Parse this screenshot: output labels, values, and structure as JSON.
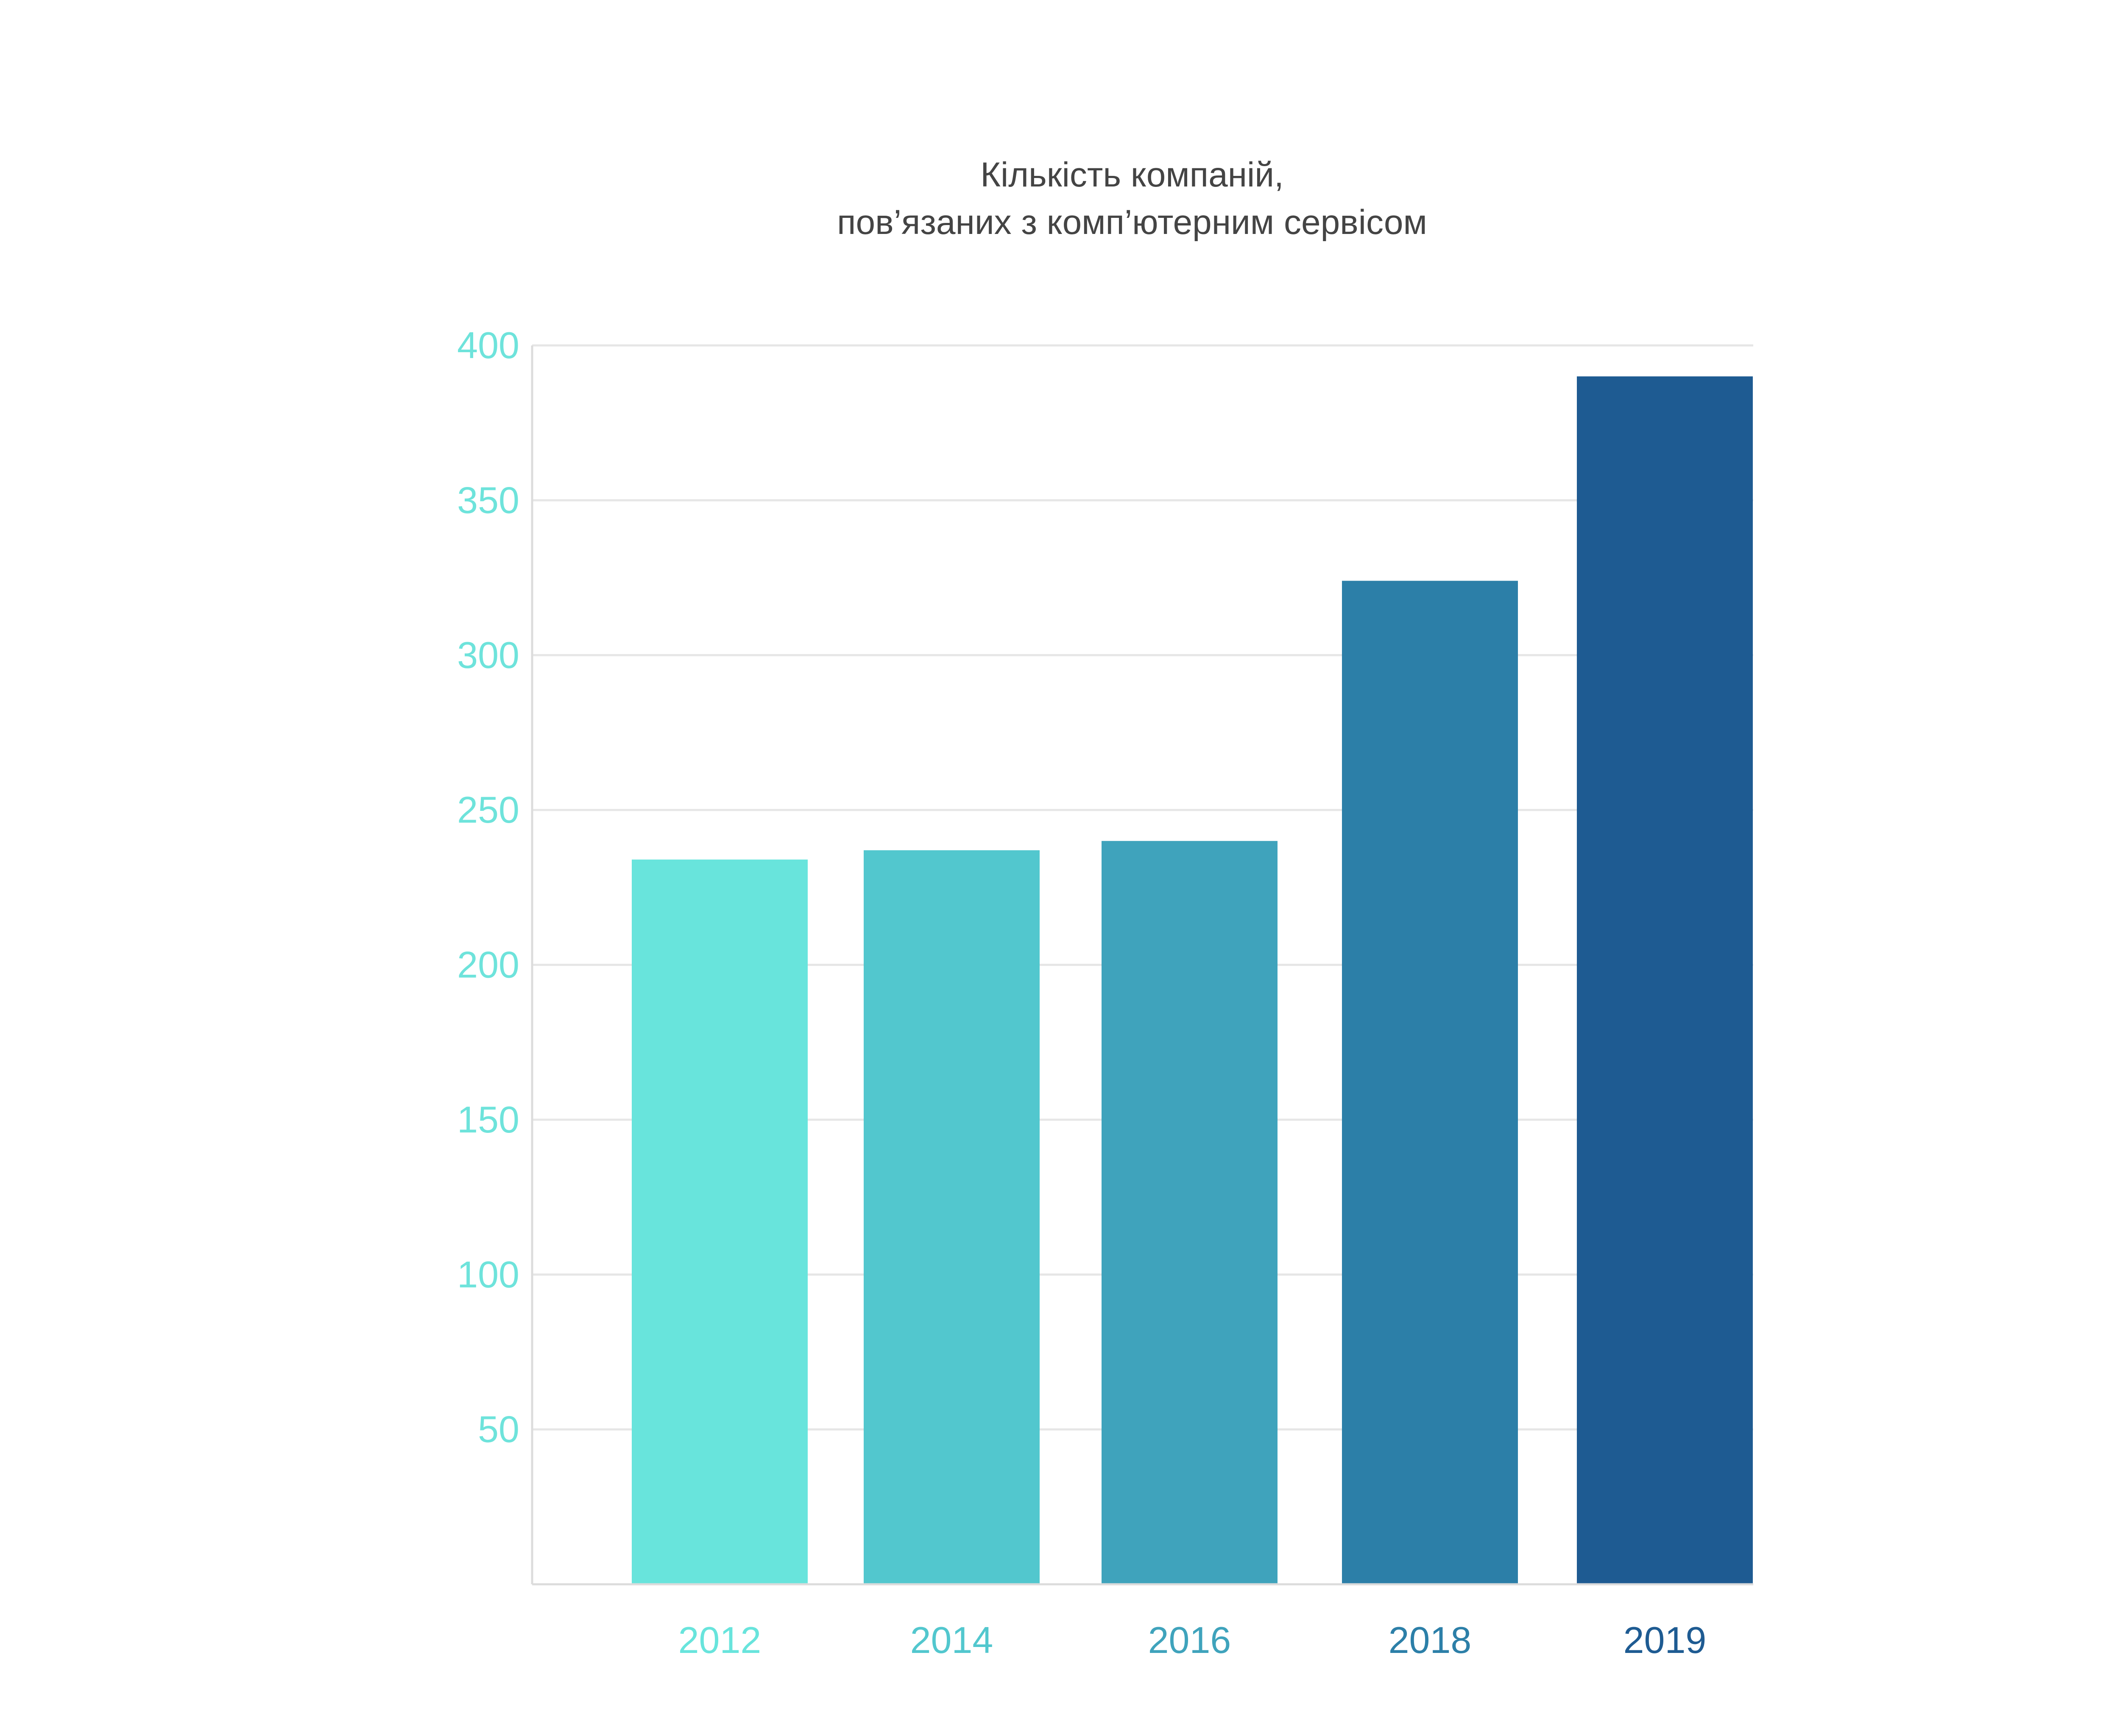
{
  "chart_data": {
    "type": "bar",
    "title_lines": [
      "Кількість компаній,",
      "пов’язаних з комп’ютерним сервісом"
    ],
    "categories": [
      "2012",
      "2014",
      "2016",
      "2018",
      "2019"
    ],
    "values": [
      234,
      237,
      240,
      324,
      390
    ],
    "colors": [
      "#68E4DC",
      "#52C7CE",
      "#3FA3BC",
      "#2C7FA8",
      "#1E5B92"
    ],
    "ylim": [
      0,
      400
    ],
    "yticks": [
      50,
      100,
      150,
      200,
      250,
      300,
      350,
      400
    ],
    "ytick_color": "#6EE3DB",
    "grid": true,
    "legend": "none"
  }
}
